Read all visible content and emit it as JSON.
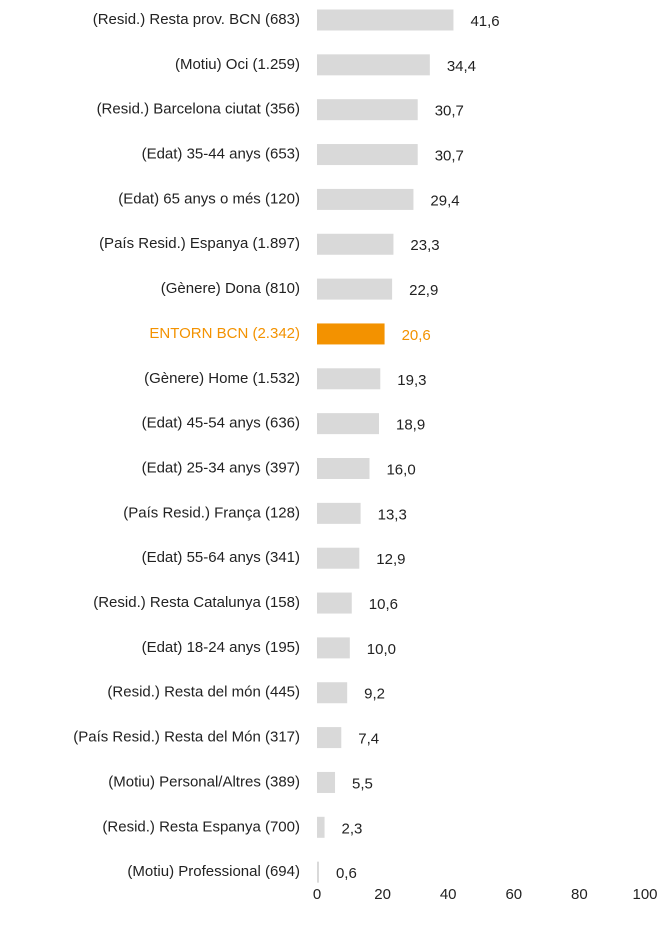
{
  "chart_data": {
    "type": "barh",
    "categories": [
      "(Resid.) Resta prov. BCN (683)",
      "(Motiu) Oci (1.259)",
      "(Resid.) Barcelona ciutat (356)",
      "(Edat) 35-44 anys (653)",
      "(Edat) 65 anys o més (120)",
      "(País Resid.) Espanya (1.897)",
      "(Gènere) Dona (810)",
      "ENTORN BCN (2.342)",
      "(Gènere) Home (1.532)",
      "(Edat) 45-54 anys (636)",
      "(Edat) 25-34 anys (397)",
      "(País Resid.) França (128)",
      "(Edat) 55-64 anys (341)",
      "(Resid.) Resta Catalunya (158)",
      "(Edat) 18-24 anys (195)",
      "(Resid.) Resta del món (445)",
      "(País Resid.) Resta del Món (317)",
      "(Motiu) Personal/Altres (389)",
      "(Resid.) Resta Espanya (700)",
      "(Motiu) Professional (694)"
    ],
    "values": [
      41.6,
      34.4,
      30.7,
      30.7,
      29.4,
      23.3,
      22.9,
      20.6,
      19.3,
      18.9,
      16.0,
      13.3,
      12.9,
      10.6,
      10.0,
      9.2,
      7.4,
      5.5,
      2.3,
      0.6
    ],
    "value_labels": [
      "41,6",
      "34,4",
      "30,7",
      "30,7",
      "29,4",
      "23,3",
      "22,9",
      "20,6",
      "19,3",
      "18,9",
      "16,0",
      "13,3",
      "12,9",
      "10,6",
      "10,0",
      "9,2",
      "7,4",
      "5,5",
      "2,3",
      "0,6"
    ],
    "colors": [
      "#d9d9d9",
      "#d9d9d9",
      "#d9d9d9",
      "#d9d9d9",
      "#d9d9d9",
      "#d9d9d9",
      "#d9d9d9",
      "#f39200",
      "#d9d9d9",
      "#d9d9d9",
      "#d9d9d9",
      "#d9d9d9",
      "#d9d9d9",
      "#d9d9d9",
      "#d9d9d9",
      "#d9d9d9",
      "#d9d9d9",
      "#d9d9d9",
      "#d9d9d9",
      "#d9d9d9"
    ],
    "label_colors": [
      "#222222",
      "#222222",
      "#222222",
      "#222222",
      "#222222",
      "#222222",
      "#222222",
      "#f39200",
      "#222222",
      "#222222",
      "#222222",
      "#222222",
      "#222222",
      "#222222",
      "#222222",
      "#222222",
      "#222222",
      "#222222",
      "#222222",
      "#222222"
    ],
    "xlim": [
      0,
      100
    ],
    "xticks": [
      0,
      20,
      40,
      60,
      80,
      100
    ],
    "grid": false
  }
}
